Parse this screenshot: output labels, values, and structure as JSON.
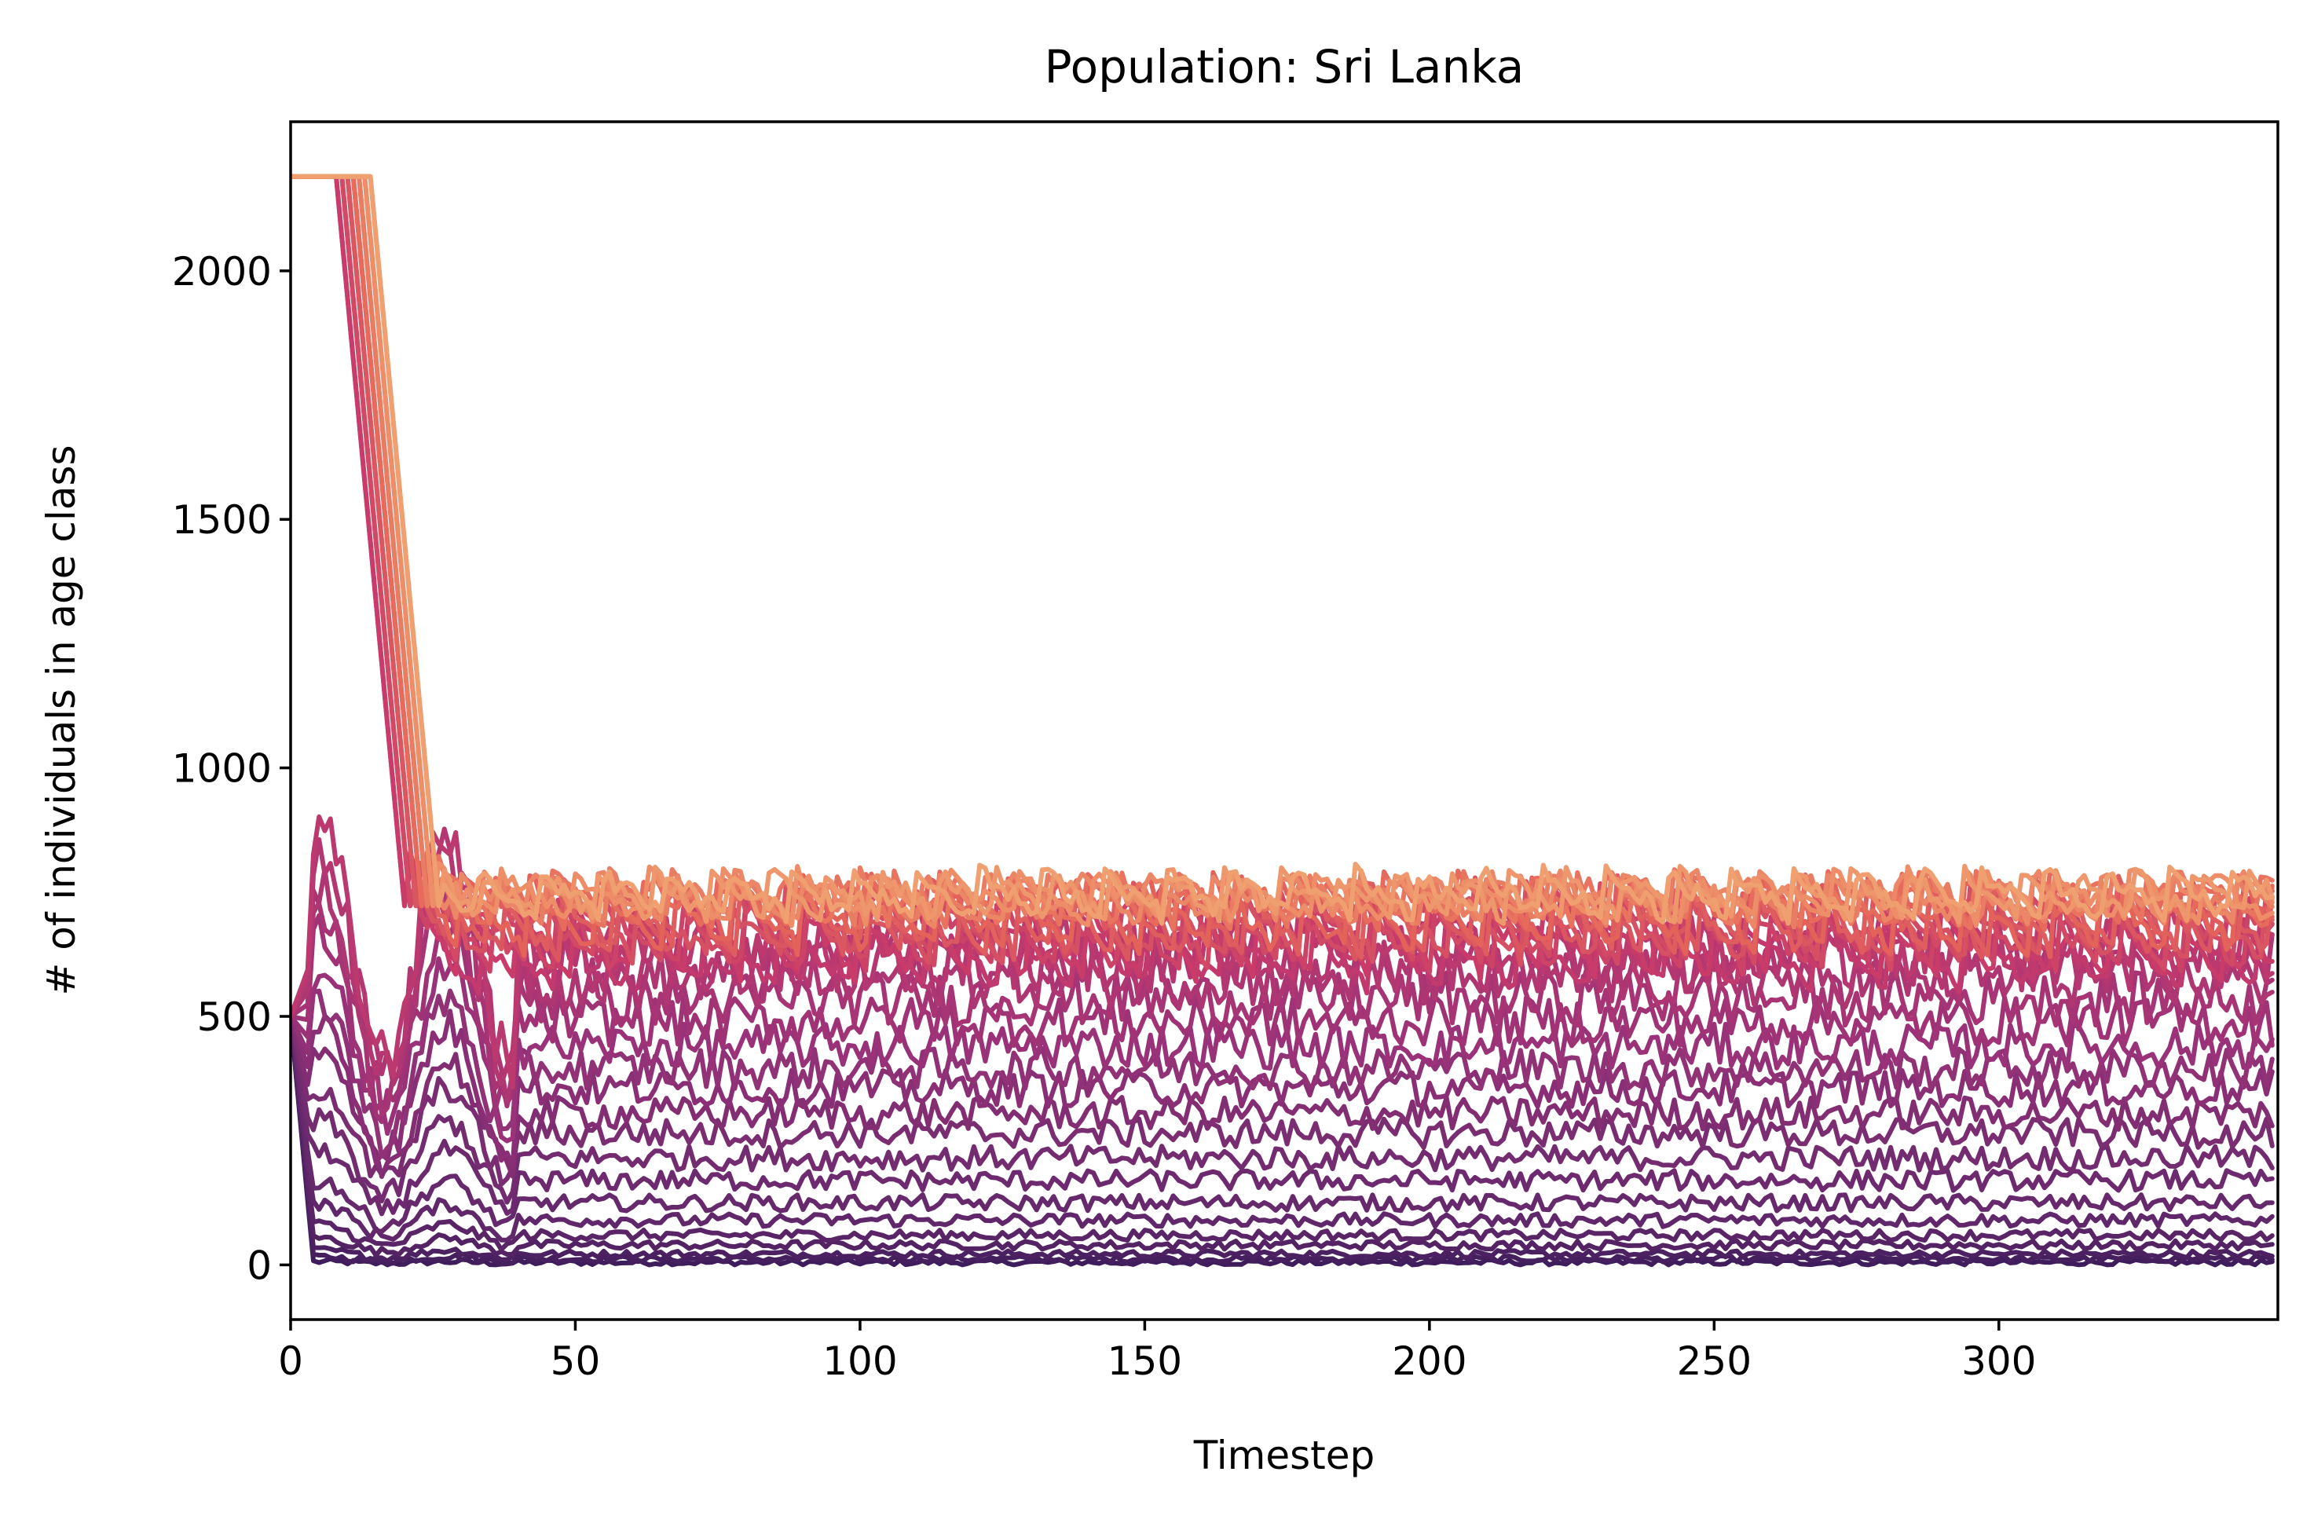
{
  "chart_data": {
    "type": "line",
    "title": "Population: Sri Lanka",
    "xlabel": "Timestep",
    "ylabel": "# of individuals in age class",
    "xlim": [
      0,
      349
    ],
    "ylim": [
      -110,
      2300
    ],
    "xticks": [
      0,
      50,
      100,
      150,
      200,
      250,
      300
    ],
    "yticks": [
      0,
      500,
      1000,
      1500,
      2000
    ],
    "grid": false,
    "legend": "none",
    "colormap": [
      "#3f1d5c",
      "#6a2a6e",
      "#9a3278",
      "#c83b6b",
      "#e5665a",
      "#f0a070"
    ],
    "series_count": 34,
    "series_summary": {
      "x_points": 349,
      "initial_peak_value": 2190,
      "initial_peak_duration": 13,
      "juvenile_start_value": 500,
      "steady_state_levels": [
        5,
        12,
        22,
        40,
        60,
        90,
        125,
        170,
        215,
        265,
        305,
        355,
        395,
        440,
        490,
        535,
        575,
        610,
        640,
        665,
        685,
        700,
        712,
        722,
        730,
        736,
        740,
        744,
        747,
        750,
        752,
        754,
        756,
        758
      ],
      "adult_pulse_peak": 760
    }
  }
}
